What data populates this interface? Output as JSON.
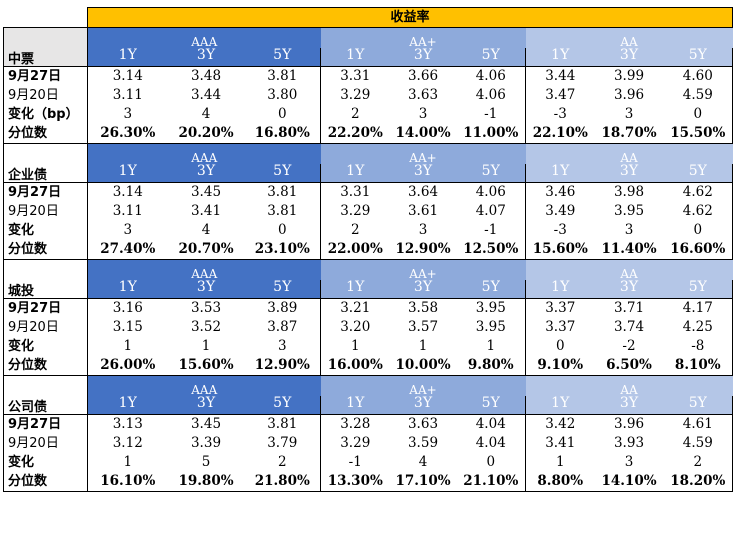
{
  "header": {
    "title": "收益率"
  },
  "groups": [
    "AAA",
    "AA+",
    "AA"
  ],
  "tenors": [
    "1Y",
    "3Y",
    "5Y",
    "1Y",
    "3Y",
    "5Y",
    "1Y",
    "3Y",
    "5Y"
  ],
  "colors": {
    "title_bg": "#ffc000",
    "aaa_bg": "#4472c4",
    "aa_plus_bg": "#8eaadb",
    "aa_bg": "#b4c6e7",
    "section_bg": "#e7e6e6"
  },
  "sections": [
    {
      "name": "中票",
      "rows": [
        {
          "label": "9月27日",
          "values": [
            "3.14",
            "3.48",
            "3.81",
            "3.31",
            "3.66",
            "4.06",
            "3.44",
            "3.99",
            "4.60"
          ]
        },
        {
          "label": "9月20日",
          "values": [
            "3.11",
            "3.44",
            "3.80",
            "3.29",
            "3.63",
            "4.06",
            "3.47",
            "3.96",
            "4.59"
          ]
        },
        {
          "label": "变化（bp）",
          "values": [
            "3",
            "4",
            "0",
            "2",
            "3",
            "-1",
            "-3",
            "3",
            "0"
          ]
        },
        {
          "label": "分位数",
          "values": [
            "26.30%",
            "20.20%",
            "16.80%",
            "22.20%",
            "14.00%",
            "11.00%",
            "22.10%",
            "18.70%",
            "15.50%"
          ]
        }
      ]
    },
    {
      "name": "企业债",
      "rows": [
        {
          "label": "9月27日",
          "values": [
            "3.14",
            "3.45",
            "3.81",
            "3.31",
            "3.64",
            "4.06",
            "3.46",
            "3.98",
            "4.62"
          ]
        },
        {
          "label": "9月20日",
          "values": [
            "3.11",
            "3.41",
            "3.81",
            "3.29",
            "3.61",
            "4.07",
            "3.49",
            "3.95",
            "4.62"
          ]
        },
        {
          "label": "变化",
          "values": [
            "3",
            "4",
            "0",
            "2",
            "3",
            "-1",
            "-3",
            "3",
            "0"
          ]
        },
        {
          "label": "分位数",
          "values": [
            "27.40%",
            "20.70%",
            "23.10%",
            "22.00%",
            "12.90%",
            "12.50%",
            "15.60%",
            "11.40%",
            "16.60%"
          ]
        }
      ]
    },
    {
      "name": "城投",
      "rows": [
        {
          "label": "9月27日",
          "values": [
            "3.16",
            "3.53",
            "3.89",
            "3.21",
            "3.58",
            "3.95",
            "3.37",
            "3.71",
            "4.17"
          ]
        },
        {
          "label": "9月20日",
          "values": [
            "3.15",
            "3.52",
            "3.87",
            "3.20",
            "3.57",
            "3.95",
            "3.37",
            "3.74",
            "4.25"
          ]
        },
        {
          "label": "变化",
          "values": [
            "1",
            "1",
            "3",
            "1",
            "1",
            "1",
            "0",
            "-2",
            "-8"
          ]
        },
        {
          "label": "分位数",
          "values": [
            "26.00%",
            "15.60%",
            "12.90%",
            "16.00%",
            "10.00%",
            "9.80%",
            "9.10%",
            "6.50%",
            "8.10%"
          ]
        }
      ]
    },
    {
      "name": "公司债",
      "rows": [
        {
          "label": "9月27日",
          "values": [
            "3.13",
            "3.45",
            "3.81",
            "3.28",
            "3.63",
            "4.04",
            "3.42",
            "3.96",
            "4.61"
          ]
        },
        {
          "label": "9月20日",
          "values": [
            "3.12",
            "3.39",
            "3.79",
            "3.29",
            "3.59",
            "4.04",
            "3.41",
            "3.93",
            "4.59"
          ]
        },
        {
          "label": "变化",
          "values": [
            "1",
            "5",
            "2",
            "-1",
            "4",
            "0",
            "1",
            "3",
            "2"
          ]
        },
        {
          "label": "分位数",
          "values": [
            "16.10%",
            "19.80%",
            "21.80%",
            "13.30%",
            "17.10%",
            "21.10%",
            "8.80%",
            "14.10%",
            "18.20%"
          ]
        }
      ]
    }
  ]
}
